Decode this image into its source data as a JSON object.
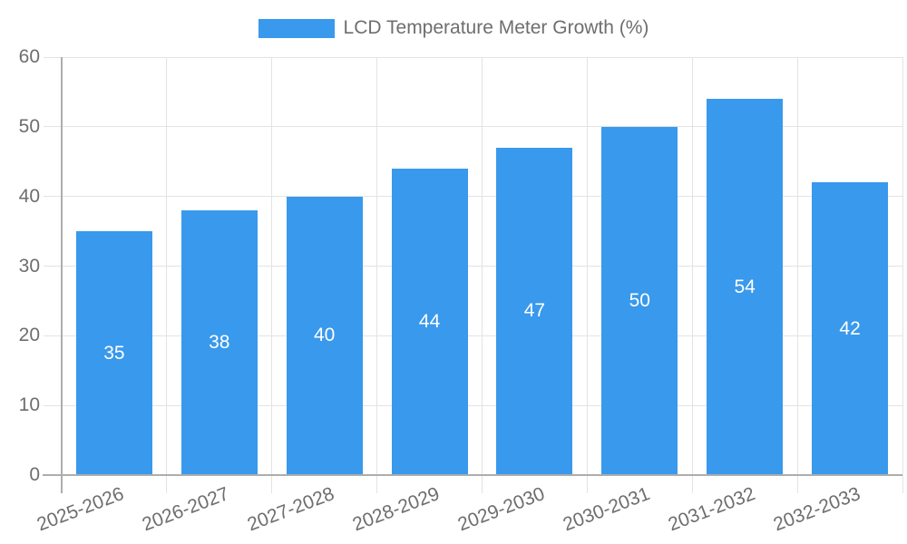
{
  "colors": {
    "bar": "#3999ec",
    "axis_text": "#6e6e6e",
    "grid_line": "#e3e3e3",
    "axis_line": "#adadad",
    "value_label": "#ffffff",
    "background": "#ffffff"
  },
  "legend": {
    "label": "LCD Temperature Meter Growth (%)"
  },
  "chart_data": {
    "type": "bar",
    "title": "LCD Temperature Meter Growth (%)",
    "categories": [
      "2025-2026",
      "2026-2027",
      "2027-2028",
      "2028-2029",
      "2029-2030",
      "2030-2031",
      "2031-2032",
      "2032-2033"
    ],
    "values": [
      35,
      38,
      40,
      44,
      47,
      50,
      54,
      42
    ],
    "value_labels_position": "inside-center",
    "xlabel": "",
    "ylabel": "",
    "ylim": [
      0,
      60
    ],
    "yticks": [
      0,
      10,
      20,
      30,
      40,
      50,
      60
    ],
    "grid": true,
    "legend_position": "top",
    "x_tick_rotation_deg": -21
  }
}
